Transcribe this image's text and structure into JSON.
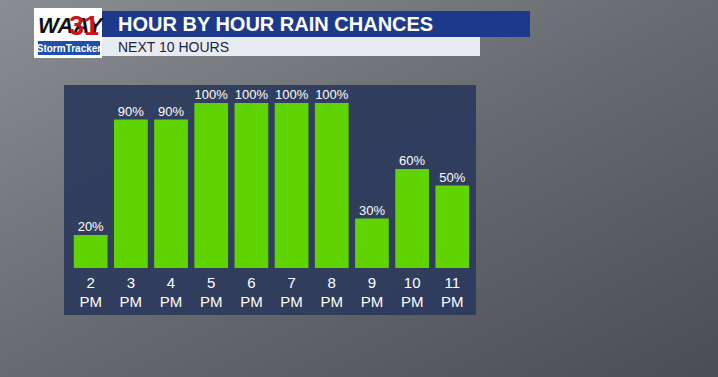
{
  "chart_data": {
    "type": "bar",
    "title": "HOUR BY HOUR RAIN CHANCES",
    "subtitle": "NEXT 10 HOURS",
    "annotations": [
      "WAAY",
      "31",
      "StormTracker"
    ],
    "categories": [
      "2 PM",
      "3 PM",
      "4 PM",
      "5 PM",
      "6 PM",
      "7 PM",
      "8 PM",
      "9 PM",
      "10 PM",
      "11 PM"
    ],
    "values": [
      20,
      90,
      90,
      100,
      100,
      100,
      100,
      30,
      60,
      50
    ],
    "value_labels": [
      "20%",
      "90%",
      "90%",
      "100%",
      "100%",
      "100%",
      "100%",
      "30%",
      "60%",
      "50%"
    ],
    "color": "#5fd400",
    "ylim": [
      0,
      100
    ],
    "data_labels": true,
    "tick_labels": "x",
    "grid": false
  }
}
